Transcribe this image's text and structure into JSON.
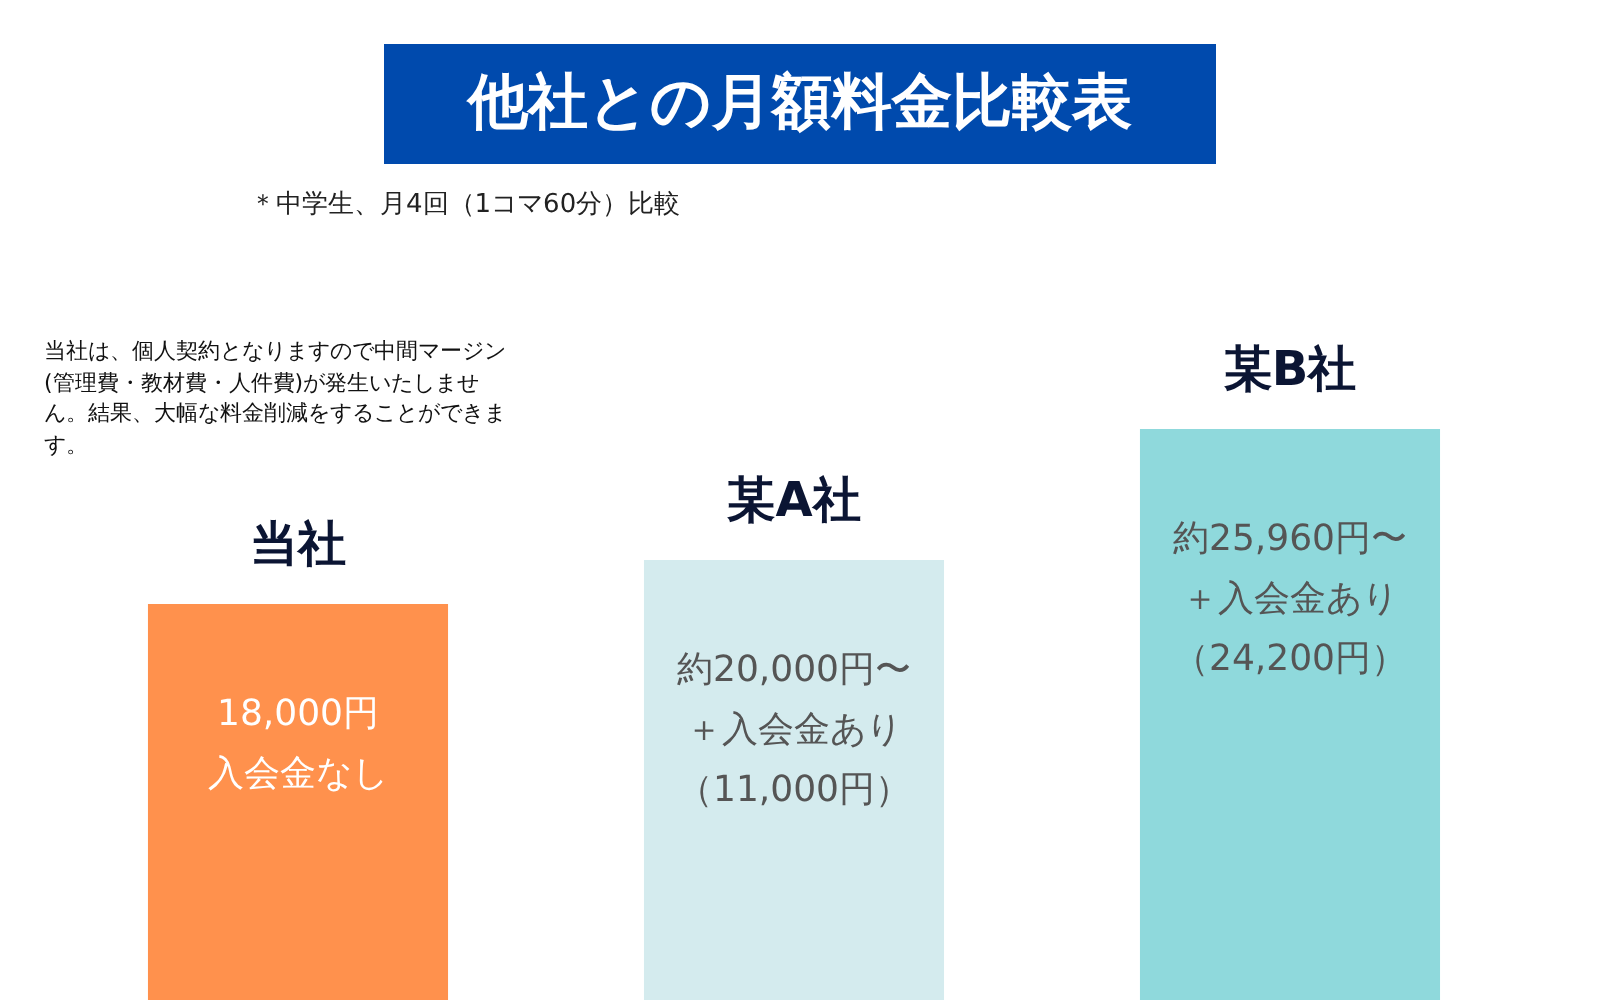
{
  "chart_data": {
    "type": "bar",
    "title": "他社との月額料金比較表",
    "subtitle": "＊中学生、月4回（1コマ60分）比較",
    "annotations": [
      "当社は、個人契約となりますので中間マージン(管理費・教材費・人件費)が発生いたしません。結果、大幅な料金削減をすることができます。"
    ],
    "categories": [
      "当社",
      "某A社",
      "某B社"
    ],
    "values": [
      18000,
      20000,
      25960
    ],
    "colors": [
      "#ff914d",
      "#d4ebee",
      "#8fd9dc"
    ],
    "value_labels": [
      "18,000円入会金なし",
      "約20,000円〜＋入会金あり（11,000円）",
      "約25,960円〜＋入会金あり（24,200円）"
    ],
    "legend": false,
    "grid": false,
    "tick_labels": "x"
  }
}
